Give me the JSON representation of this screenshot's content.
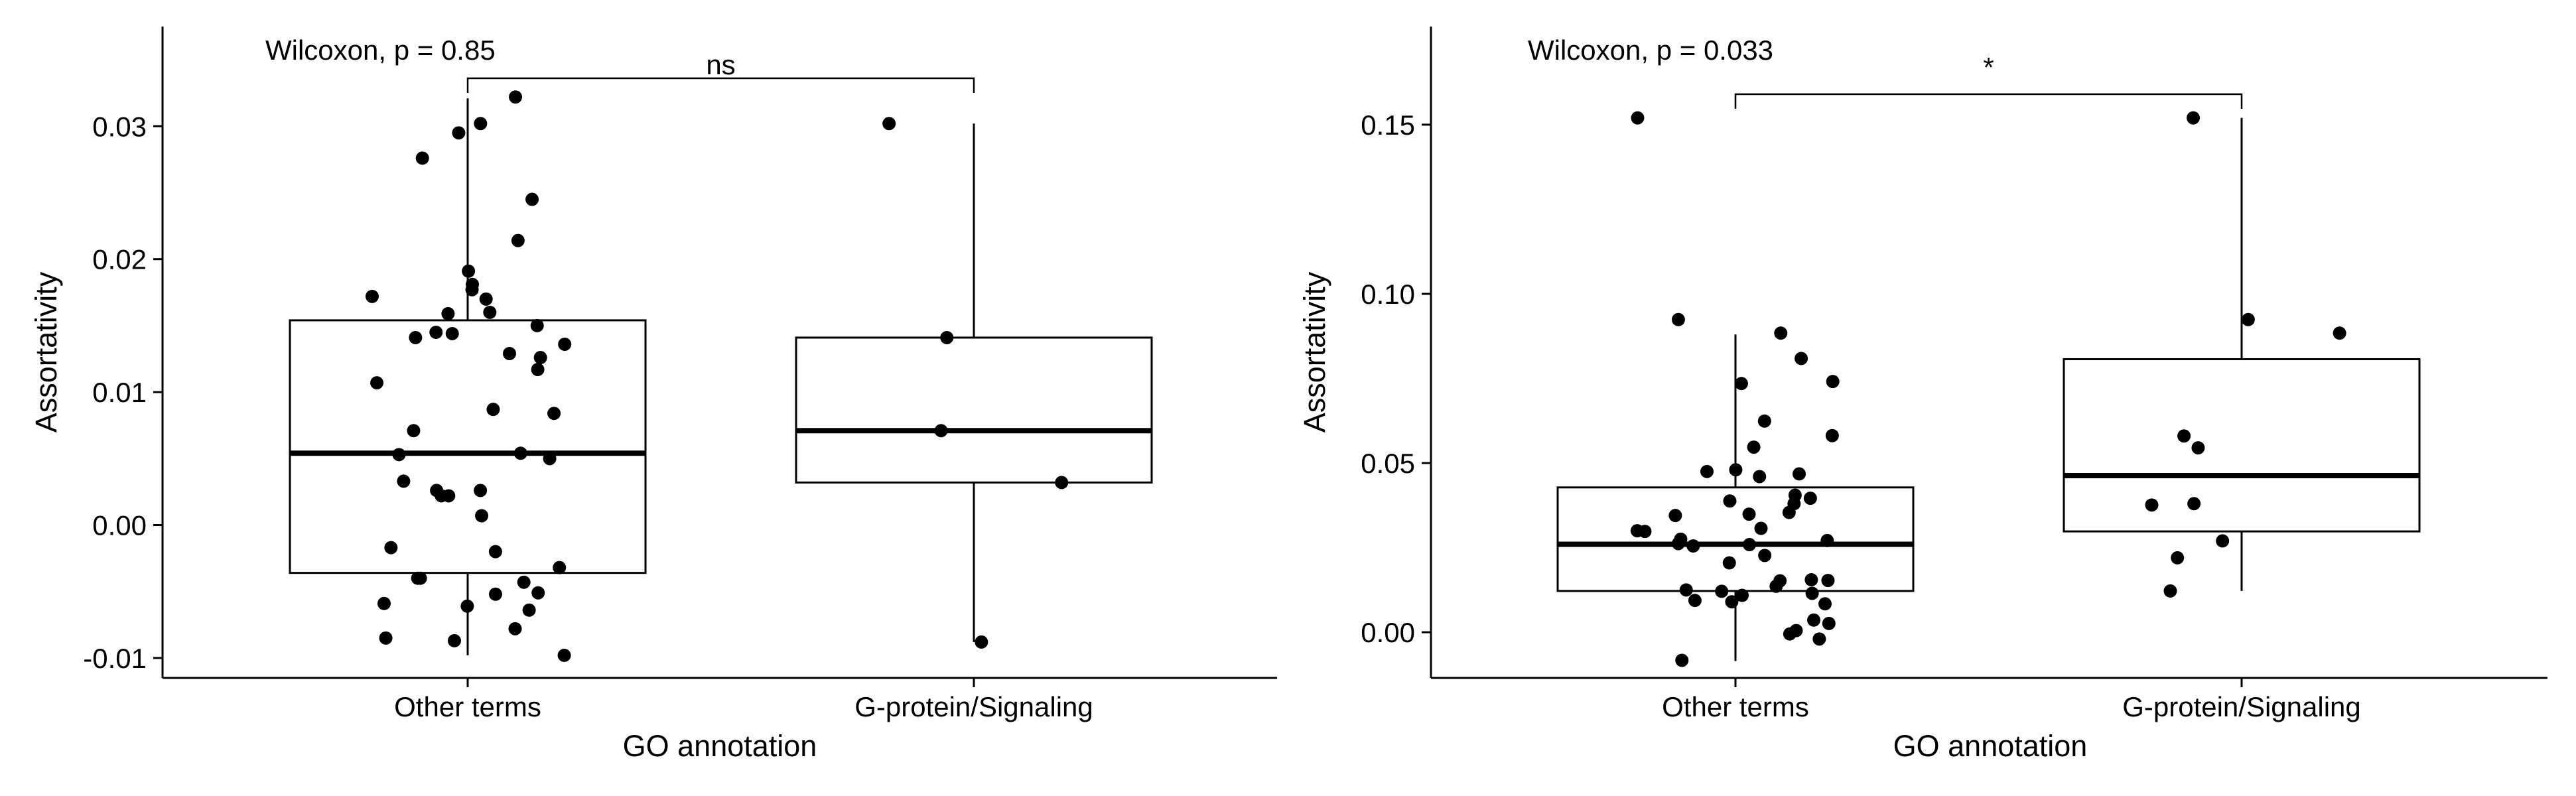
{
  "chart_data": [
    {
      "type": "box",
      "xlabel": "GO annotation",
      "ylabel": "Assortativity",
      "ylim": [
        -0.0115,
        0.0375
      ],
      "yticks": [
        -0.01,
        0.0,
        0.01,
        0.02,
        0.03
      ],
      "ytick_labels": [
        "-0.01",
        "0.00",
        "0.01",
        "0.02",
        "0.03"
      ],
      "categories": [
        "Other terms",
        "G-protein/Signaling"
      ],
      "grid": false,
      "test_label": "Wilcoxon, p = 0.85",
      "significance": "ns",
      "boxes": [
        {
          "category": "Other terms",
          "whisker_low": -0.0098,
          "q1": -0.0036,
          "median": 0.0054,
          "q3": 0.0154,
          "whisker_high": 0.0321
        },
        {
          "category": "G-protein/Signaling",
          "whisker_low": -0.0088,
          "q1": 0.0032,
          "median": 0.0071,
          "q3": 0.0141,
          "whisker_high": 0.0302
        }
      ],
      "points": [
        {
          "category": "Other terms",
          "values": [
            0.0322,
            0.0302,
            0.0295,
            0.0276,
            0.0245,
            0.0214,
            0.0191,
            0.0181,
            0.0177,
            0.0172,
            0.017,
            0.016,
            0.0159,
            0.015,
            0.0145,
            0.0144,
            0.0141,
            0.0136,
            0.0129,
            0.0126,
            0.0117,
            0.0107,
            0.0087,
            0.0084,
            0.0071,
            0.0054,
            0.0053,
            0.005,
            0.0033,
            0.0026,
            0.0026,
            0.0022,
            0.0022,
            0.0007,
            -0.0017,
            -0.002,
            -0.0032,
            -0.004,
            -0.004,
            -0.0043,
            -0.0051,
            -0.0052,
            -0.0059,
            -0.0061,
            -0.0064,
            -0.0078,
            -0.0085,
            -0.0087,
            -0.0098
          ]
        },
        {
          "category": "G-protein/Signaling",
          "values": [
            0.0302,
            0.0141,
            0.0071,
            0.0032,
            -0.0088
          ]
        }
      ]
    },
    {
      "type": "box",
      "xlabel": "GO annotation",
      "ylabel": "Assortativity",
      "ylim": [
        -0.0135,
        0.179
      ],
      "yticks": [
        0.0,
        0.05,
        0.1,
        0.15
      ],
      "ytick_labels": [
        "0.00",
        "0.05",
        "0.10",
        "0.15"
      ],
      "categories": [
        "Other terms",
        "G-protein/Signaling"
      ],
      "grid": false,
      "test_label": "Wilcoxon, p = 0.033",
      "significance": "*",
      "boxes": [
        {
          "category": "Other terms",
          "whisker_low": -0.0085,
          "q1": 0.0122,
          "median": 0.026,
          "q3": 0.0428,
          "whisker_high": 0.088
        },
        {
          "category": "G-protein/Signaling",
          "whisker_low": 0.0122,
          "q1": 0.0298,
          "median": 0.0463,
          "q3": 0.0807,
          "whisker_high": 0.152
        }
      ],
      "points": [
        {
          "category": "Other terms",
          "values": [
            0.152,
            0.0924,
            0.0884,
            0.0809,
            0.0741,
            0.0735,
            0.0624,
            0.0581,
            0.0547,
            0.048,
            0.0475,
            0.0468,
            0.046,
            0.0405,
            0.0396,
            0.0388,
            0.038,
            0.0354,
            0.0349,
            0.0345,
            0.0307,
            0.03,
            0.0298,
            0.0275,
            0.0271,
            0.0262,
            0.0259,
            0.0255,
            0.0227,
            0.0205,
            0.0155,
            0.0153,
            0.0152,
            0.0136,
            0.0125,
            0.0121,
            0.0115,
            0.0109,
            0.0094,
            0.009,
            0.0084,
            0.0036,
            0.0026,
            0.0005,
            -0.0005,
            -0.002,
            -0.0083
          ]
        },
        {
          "category": "G-protein/Signaling",
          "values": [
            0.152,
            0.0924,
            0.0884,
            0.058,
            0.0545,
            0.038,
            0.0376,
            0.027,
            0.022,
            0.0122
          ]
        }
      ]
    }
  ]
}
